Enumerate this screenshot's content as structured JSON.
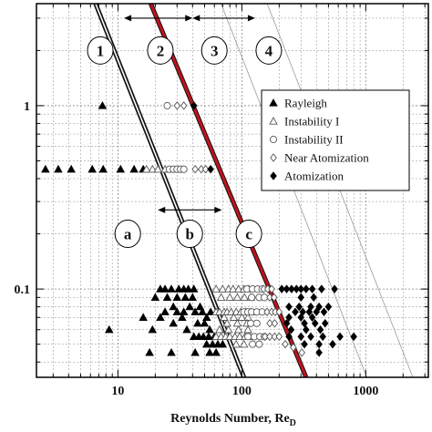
{
  "chart_data": {
    "type": "scatter",
    "title": "",
    "xlabel": "Reynolds Number, Re",
    "xlabel_sub": "D",
    "ylabel": "",
    "x_scale": "log",
    "y_scale": "log",
    "xlim": [
      2.2,
      3200
    ],
    "ylim": [
      0.033,
      3.6
    ],
    "grid": true,
    "legend_position": "top-right",
    "x_ticks": [
      {
        "value": 10,
        "label": "10"
      },
      {
        "value": 100,
        "label": "100"
      },
      {
        "value": 1000,
        "label": "1000"
      }
    ],
    "y_ticks": [
      {
        "value": 1,
        "label": "1"
      },
      {
        "value": 0.1,
        "label": "0.1"
      }
    ],
    "series": [
      {
        "name": "Rayleigh",
        "marker": "triangle-filled",
        "points": [
          [
            7.5,
            1
          ],
          [
            2.6,
            0.45
          ],
          [
            3.3,
            0.45
          ],
          [
            4.2,
            0.45
          ],
          [
            6.2,
            0.45
          ],
          [
            7.6,
            0.45
          ],
          [
            10.5,
            0.45
          ],
          [
            13.5,
            0.45
          ],
          [
            16,
            0.45
          ],
          [
            22,
            0.1
          ],
          [
            24,
            0.1
          ],
          [
            27,
            0.1
          ],
          [
            31,
            0.1
          ],
          [
            34,
            0.1
          ],
          [
            37,
            0.1
          ],
          [
            41,
            0.1
          ],
          [
            20,
            0.09
          ],
          [
            25,
            0.09
          ],
          [
            30,
            0.09
          ],
          [
            35,
            0.09
          ],
          [
            40,
            0.09
          ],
          [
            28,
            0.08
          ],
          [
            38,
            0.08
          ],
          [
            46,
            0.08
          ],
          [
            24,
            0.075
          ],
          [
            30,
            0.075
          ],
          [
            34,
            0.075
          ],
          [
            42,
            0.075
          ],
          [
            48,
            0.075
          ],
          [
            56,
            0.075
          ],
          [
            16,
            0.07
          ],
          [
            22,
            0.07
          ],
          [
            33,
            0.07
          ],
          [
            52,
            0.07
          ],
          [
            28,
            0.065
          ],
          [
            44,
            0.065
          ],
          [
            50,
            0.065
          ],
          [
            8.5,
            0.06
          ],
          [
            19,
            0.06
          ],
          [
            36,
            0.06
          ],
          [
            55,
            0.06
          ],
          [
            41,
            0.055
          ],
          [
            45,
            0.055
          ],
          [
            49,
            0.055
          ],
          [
            54,
            0.055
          ],
          [
            60,
            0.055
          ],
          [
            52,
            0.05
          ],
          [
            58,
            0.05
          ],
          [
            64,
            0.05
          ],
          [
            70,
            0.05
          ],
          [
            18,
            0.045
          ],
          [
            27,
            0.045
          ],
          [
            42,
            0.045
          ],
          [
            55,
            0.045
          ],
          [
            62,
            0.045
          ]
        ]
      },
      {
        "name": "Instability I",
        "marker": "triangle-open",
        "points": [
          [
            17,
            0.45
          ],
          [
            19,
            0.45
          ],
          [
            21,
            0.45
          ],
          [
            24,
            0.45
          ],
          [
            62,
            0.1
          ],
          [
            70,
            0.1
          ],
          [
            78,
            0.1
          ],
          [
            85,
            0.1
          ],
          [
            94,
            0.1
          ],
          [
            104,
            0.1
          ],
          [
            114,
            0.1
          ],
          [
            68,
            0.09
          ],
          [
            80,
            0.09
          ],
          [
            92,
            0.09
          ],
          [
            105,
            0.09
          ],
          [
            118,
            0.09
          ],
          [
            62,
            0.075
          ],
          [
            66,
            0.075
          ],
          [
            72,
            0.075
          ],
          [
            76,
            0.075
          ],
          [
            82,
            0.075
          ],
          [
            90,
            0.075
          ],
          [
            98,
            0.075
          ],
          [
            108,
            0.075
          ],
          [
            118,
            0.075
          ],
          [
            72,
            0.07
          ],
          [
            86,
            0.07
          ],
          [
            100,
            0.07
          ],
          [
            112,
            0.07
          ],
          [
            76,
            0.065
          ],
          [
            92,
            0.065
          ],
          [
            110,
            0.065
          ],
          [
            66,
            0.06
          ],
          [
            78,
            0.06
          ],
          [
            94,
            0.06
          ],
          [
            112,
            0.06
          ],
          [
            62,
            0.055
          ],
          [
            68,
            0.055
          ],
          [
            74,
            0.055
          ],
          [
            80,
            0.055
          ],
          [
            88,
            0.055
          ],
          [
            96,
            0.055
          ],
          [
            106,
            0.055
          ],
          [
            116,
            0.055
          ],
          [
            90,
            0.05
          ],
          [
            104,
            0.05
          ]
        ]
      },
      {
        "name": "Instability II",
        "marker": "circle-open",
        "points": [
          [
            25,
            1
          ],
          [
            26,
            0.45
          ],
          [
            28,
            0.45
          ],
          [
            30,
            0.45
          ],
          [
            32,
            0.45
          ],
          [
            34,
            0.45
          ],
          [
            110,
            0.1
          ],
          [
            122,
            0.1
          ],
          [
            134,
            0.1
          ],
          [
            146,
            0.1
          ],
          [
            120,
            0.09
          ],
          [
            138,
            0.09
          ],
          [
            152,
            0.09
          ],
          [
            104,
            0.075
          ],
          [
            112,
            0.075
          ],
          [
            120,
            0.075
          ],
          [
            132,
            0.075
          ],
          [
            146,
            0.075
          ],
          [
            118,
            0.065
          ],
          [
            132,
            0.065
          ],
          [
            112,
            0.055
          ],
          [
            126,
            0.055
          ],
          [
            140,
            0.055
          ],
          [
            152,
            0.055
          ],
          [
            122,
            0.05
          ],
          [
            138,
            0.05
          ]
        ]
      },
      {
        "name": "Near Atomization",
        "marker": "diamond-open",
        "points": [
          [
            30,
            1
          ],
          [
            34,
            1
          ],
          [
            42,
            0.45
          ],
          [
            47,
            0.45
          ],
          [
            51,
            0.45
          ],
          [
            150,
            0.1
          ],
          [
            162,
            0.1
          ],
          [
            174,
            0.1
          ],
          [
            168,
            0.09
          ],
          [
            182,
            0.09
          ],
          [
            160,
            0.075
          ],
          [
            174,
            0.075
          ],
          [
            186,
            0.075
          ],
          [
            200,
            0.075
          ],
          [
            168,
            0.065
          ],
          [
            184,
            0.065
          ],
          [
            154,
            0.055
          ],
          [
            168,
            0.055
          ],
          [
            184,
            0.055
          ],
          [
            200,
            0.055
          ],
          [
            224,
            0.05
          ],
          [
            260,
            0.048
          ],
          [
            305,
            0.045
          ]
        ]
      },
      {
        "name": "Atomization",
        "marker": "diamond-filled",
        "points": [
          [
            41,
            1
          ],
          [
            56,
            0.45
          ],
          [
            210,
            0.1
          ],
          [
            230,
            0.1
          ],
          [
            252,
            0.1
          ],
          [
            276,
            0.1
          ],
          [
            300,
            0.1
          ],
          [
            330,
            0.1
          ],
          [
            370,
            0.1
          ],
          [
            440,
            0.1
          ],
          [
            560,
            0.1
          ],
          [
            300,
            0.09
          ],
          [
            380,
            0.09
          ],
          [
            240,
            0.08
          ],
          [
            290,
            0.08
          ],
          [
            360,
            0.08
          ],
          [
            420,
            0.08
          ],
          [
            500,
            0.08
          ],
          [
            270,
            0.075
          ],
          [
            310,
            0.075
          ],
          [
            350,
            0.075
          ],
          [
            400,
            0.075
          ],
          [
            460,
            0.075
          ],
          [
            240,
            0.07
          ],
          [
            300,
            0.07
          ],
          [
            370,
            0.07
          ],
          [
            230,
            0.065
          ],
          [
            320,
            0.065
          ],
          [
            390,
            0.065
          ],
          [
            470,
            0.065
          ],
          [
            250,
            0.06
          ],
          [
            330,
            0.06
          ],
          [
            430,
            0.06
          ],
          [
            240,
            0.055
          ],
          [
            300,
            0.055
          ],
          [
            360,
            0.055
          ],
          [
            450,
            0.055
          ],
          [
            620,
            0.055
          ],
          [
            800,
            0.055
          ],
          [
            320,
            0.05
          ],
          [
            420,
            0.05
          ],
          [
            540,
            0.05
          ],
          [
            420,
            0.045
          ]
        ]
      }
    ],
    "boundary_lines": [
      {
        "style": "black-double",
        "points": [
          [
            6.6,
            3.6
          ],
          [
            104,
            0.033
          ]
        ]
      },
      {
        "style": "red-thick",
        "points": [
          [
            18.4,
            3.6
          ],
          [
            330,
            0.033
          ]
        ]
      },
      {
        "style": "thin-gray",
        "points": [
          [
            68,
            3.6
          ],
          [
            1020,
            0.033
          ]
        ]
      },
      {
        "style": "thin-gray",
        "points": [
          [
            160,
            3.6
          ],
          [
            2400,
            0.033
          ]
        ]
      }
    ],
    "annotations": [
      {
        "text": "1",
        "x": 7.2,
        "y": 2.0
      },
      {
        "text": "2",
        "x": 22,
        "y": 2.0
      },
      {
        "text": "3",
        "x": 60,
        "y": 2.0
      },
      {
        "text": "4",
        "x": 165,
        "y": 2.0
      },
      {
        "text": "a",
        "x": 12,
        "y": 0.2
      },
      {
        "text": "b",
        "x": 38,
        "y": 0.2
      },
      {
        "text": "c",
        "x": 114,
        "y": 0.2
      }
    ],
    "arrows": [
      {
        "from": [
          11.2,
          3.0
        ],
        "to": [
          40,
          3.0
        ]
      },
      {
        "from": [
          40,
          3.0
        ],
        "to": [
          128,
          3.0
        ]
      },
      {
        "from": [
          21,
          0.27
        ],
        "to": [
          69,
          0.27
        ]
      }
    ]
  }
}
